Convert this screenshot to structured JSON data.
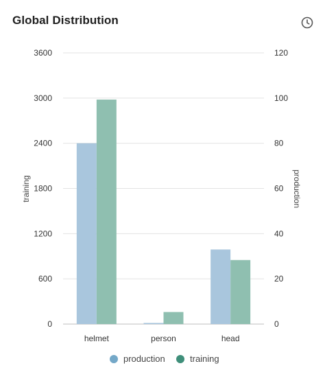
{
  "widget": {
    "title": "Global Distribution",
    "history_icon": "clock-icon"
  },
  "colors": {
    "production": "#a9c6dd",
    "training": "#8fbfb0",
    "production_legend": "#74a8c8",
    "training_legend": "#3f8f7a",
    "grid": "#e3e3e3"
  },
  "chart_data": {
    "type": "bar",
    "categories": [
      "helmet",
      "person",
      "head"
    ],
    "series": [
      {
        "name": "production",
        "axis": "right",
        "values": [
          80,
          0.5,
          33
        ]
      },
      {
        "name": "training",
        "axis": "left",
        "values": [
          2980,
          160,
          850
        ]
      }
    ],
    "ylabel": "training",
    "y2label": "production",
    "ylim": [
      0,
      3600
    ],
    "y2lim": [
      0,
      120
    ],
    "yticks": [
      0,
      600,
      1200,
      1800,
      2400,
      3000,
      3600
    ],
    "y2ticks": [
      0,
      20,
      40,
      60,
      80,
      100,
      120
    ],
    "grid": true,
    "legend": "bottom-center"
  }
}
